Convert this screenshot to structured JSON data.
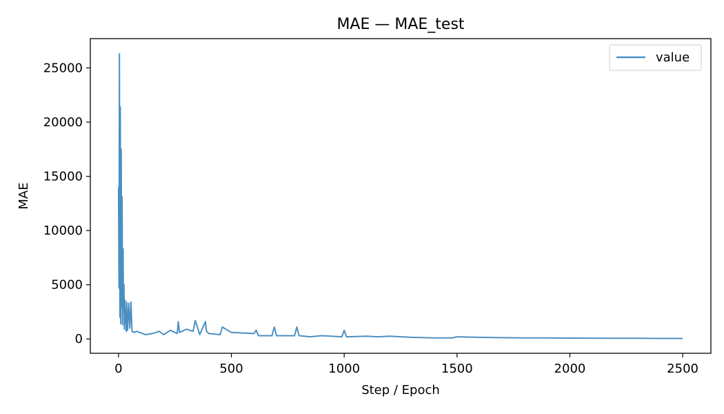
{
  "chart_data": {
    "type": "line",
    "title": "MAE — MAE_test",
    "xlabel": "Step / Epoch",
    "ylabel": "MAE",
    "xlim": [
      -125,
      2625
    ],
    "ylim": [
      -1321,
      27700
    ],
    "xticks": [
      0,
      500,
      1000,
      1500,
      2000,
      2500
    ],
    "yticks": [
      0,
      5000,
      10000,
      15000,
      20000,
      25000
    ],
    "grid": false,
    "legend_position": "top-right",
    "color": "#4c8fc1",
    "series": [
      {
        "name": "value",
        "x": [
          0,
          2,
          4,
          6,
          8,
          10,
          12,
          14,
          16,
          18,
          20,
          22,
          24,
          26,
          28,
          30,
          32,
          34,
          36,
          38,
          40,
          45,
          50,
          55,
          60,
          70,
          80,
          100,
          120,
          150,
          180,
          200,
          230,
          260,
          265,
          270,
          300,
          330,
          340,
          360,
          385,
          390,
          400,
          450,
          460,
          500,
          600,
          610,
          620,
          680,
          690,
          700,
          780,
          790,
          800,
          850,
          900,
          990,
          1000,
          1010,
          1100,
          1150,
          1200,
          1300,
          1400,
          1480,
          1500,
          1600,
          1700,
          1800,
          1900,
          2000,
          2100,
          2200,
          2300,
          2400,
          2500
        ],
        "y": [
          14000,
          4700,
          26300,
          2000,
          21400,
          1400,
          17500,
          3000,
          13100,
          1300,
          8300,
          2500,
          5000,
          900,
          3600,
          1500,
          2700,
          700,
          3400,
          1200,
          800,
          3300,
          1000,
          3400,
          700,
          600,
          700,
          550,
          400,
          500,
          700,
          400,
          800,
          500,
          1600,
          600,
          900,
          700,
          1700,
          400,
          1600,
          700,
          500,
          400,
          1100,
          600,
          500,
          800,
          300,
          300,
          1100,
          300,
          300,
          1100,
          300,
          200,
          300,
          200,
          800,
          200,
          250,
          200,
          250,
          150,
          100,
          100,
          200,
          150,
          120,
          100,
          100,
          80,
          70,
          60,
          60,
          50,
          50
        ]
      }
    ]
  }
}
